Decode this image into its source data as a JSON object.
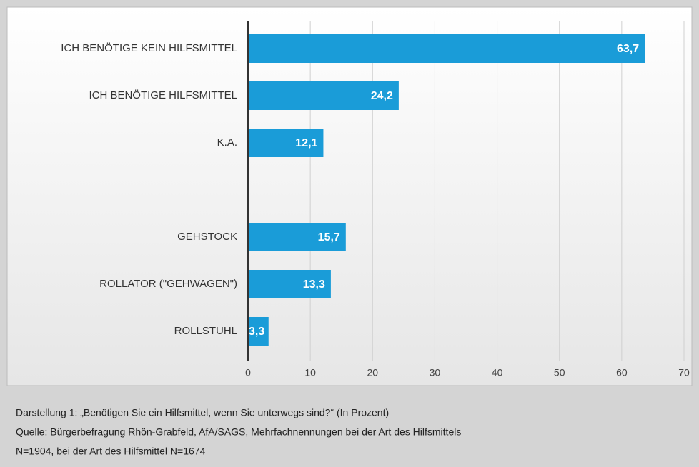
{
  "chart_data": {
    "type": "bar",
    "orientation": "horizontal",
    "categories": [
      "ICH BENÖTIGE KEIN HILFSMITTEL",
      "ICH BENÖTIGE HILFSMITTEL",
      "K.A.",
      null,
      "GEHSTOCK",
      "ROLLATOR (\"GEHWAGEN\")",
      "ROLLSTUHL"
    ],
    "values": [
      63.7,
      24.2,
      12.1,
      null,
      15.7,
      13.3,
      3.3
    ],
    "value_labels": [
      "63,7",
      "24,2",
      "12,1",
      null,
      "15,7",
      "13,3",
      "3,3"
    ],
    "color": "#1a9cd8",
    "xlim": [
      0,
      70
    ],
    "xticks": [
      0,
      10,
      20,
      30,
      40,
      50,
      60,
      70
    ],
    "grid": true,
    "caption": [
      "Darstellung 1: „Benötigen Sie ein Hilfsmittel, wenn Sie unterwegs sind?“ (In Prozent)",
      "Quelle: Bürgerbefragung Rhön-Grabfeld, AfA/SAGS, Mehrfachnennungen bei der Art des Hilfsmittels",
      "N=1904, bei der Art des Hilfsmittel N=1674"
    ]
  }
}
